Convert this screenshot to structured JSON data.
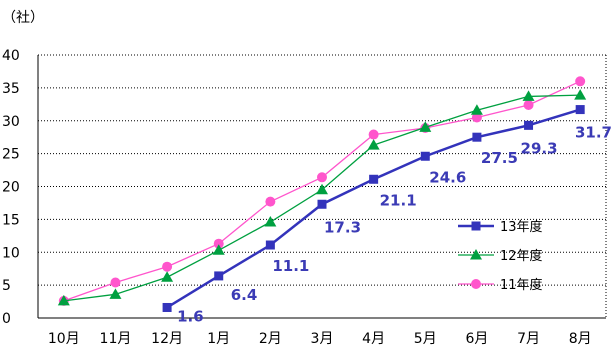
{
  "chart_data": {
    "type": "line",
    "unit_label": "（社）",
    "categories": [
      "10月",
      "11月",
      "12月",
      "1月",
      "2月",
      "3月",
      "4月",
      "5月",
      "6月",
      "7月",
      "8月"
    ],
    "ylim": [
      0,
      40
    ],
    "yticks": [
      0,
      5,
      10,
      15,
      20,
      25,
      30,
      35,
      40
    ],
    "grid": true,
    "legend_position": "right",
    "series": [
      {
        "name": "13年度",
        "color": "#3333bb",
        "marker": "square",
        "values": [
          null,
          null,
          1.6,
          6.4,
          11.1,
          17.3,
          21.1,
          24.6,
          27.5,
          29.3,
          31.7
        ],
        "labels": [
          null,
          null,
          "1.6",
          "6.4",
          "11.1",
          "17.3",
          "21.1",
          "24.6",
          "27.5",
          "29.3",
          "31.7"
        ]
      },
      {
        "name": "12年度",
        "color": "#00a040",
        "marker": "triangle",
        "values": [
          2.6,
          3.6,
          6.2,
          10.3,
          14.6,
          19.5,
          26.3,
          29.0,
          31.6,
          33.7,
          33.9
        ]
      },
      {
        "name": "11年度",
        "color": "#ff55cc",
        "marker": "circle",
        "values": [
          2.6,
          5.4,
          7.8,
          11.3,
          17.7,
          21.4,
          27.9,
          28.9,
          30.5,
          32.4,
          36.0
        ]
      }
    ]
  }
}
